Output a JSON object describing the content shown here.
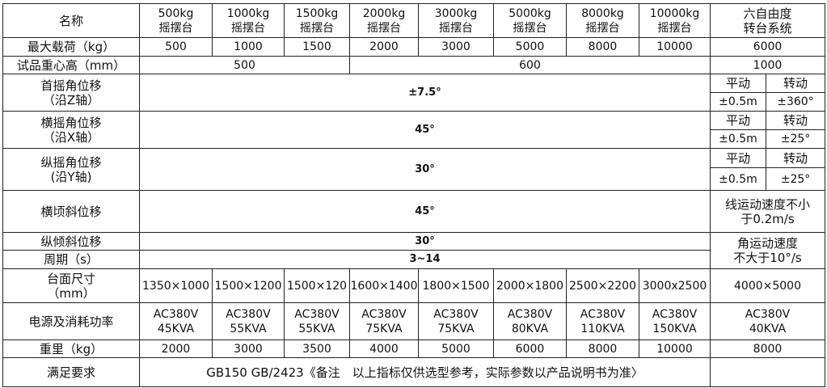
{
  "header": {
    "label": "名称",
    "models": [
      {
        "l1": "500kg",
        "l2": "摇摆台"
      },
      {
        "l1": "1000kg",
        "l2": "摇摆台"
      },
      {
        "l1": "1500kg",
        "l2": "摇摆台"
      },
      {
        "l1": "2000kg",
        "l2": "摇摆台"
      },
      {
        "l1": "3000kg",
        "l2": "摇摆台"
      },
      {
        "l1": "5000kg",
        "l2": "摇摆台"
      },
      {
        "l1": "8000kg",
        "l2": "摇摆台"
      },
      {
        "l1": "10000kg",
        "l2": "摇摆台"
      }
    ],
    "six_dof": {
      "l1": "六自由度",
      "l2": "转台系统"
    }
  },
  "max_load": {
    "label": "最大载荷（kg）",
    "values": [
      "500",
      "1000",
      "1500",
      "2000",
      "3000",
      "5000",
      "8000",
      "10000"
    ],
    "six_dof": "6000"
  },
  "cog_height": {
    "label": "试品重心高（mm）",
    "group1": "500",
    "group2": "600",
    "six_dof": "1000"
  },
  "yaw": {
    "l1": "首摇角位移",
    "l2": "（沿Z轴）",
    "value": "±7.5°",
    "h1": "平动",
    "h2": "转动",
    "v1": "±0.5m",
    "v2": "±360°"
  },
  "roll": {
    "l1": "横摇角位移",
    "l2": "（沿X轴）",
    "value": "45°",
    "h1": "平动",
    "h2": "转动",
    "v1": "±0.5m",
    "v2": "±25°"
  },
  "pitch": {
    "l1": "纵摇角位移",
    "l2": "(沿Y轴)",
    "value": "30°",
    "h1": "平动",
    "h2": "转动",
    "v1": "±0.5m",
    "v2": "±25°"
  },
  "lateral_tilt": {
    "label": "横顷斜位移",
    "value": "45°",
    "six_l1": "线运动速度不小",
    "six_l2": "于0.2m/s"
  },
  "long_tilt": {
    "label": "纵倾斜位移",
    "value": "30°",
    "six_l1": "角运动速度",
    "six_l2": "不大于10°/s"
  },
  "period": {
    "label": "周期（s）",
    "value": "3~14"
  },
  "table_size": {
    "l1": "台面尺寸",
    "l2": "（mm）",
    "values": [
      "1350×1000",
      "1500×1200",
      "1500×120",
      "1600×1400",
      "1800×1500",
      "2000×1800",
      "2500×2200",
      "3000x2500"
    ],
    "six_dof": "4000×5000"
  },
  "power": {
    "label": "电源及消耗功率",
    "voltage": "AC380V",
    "values": [
      "45KVA",
      "55KVA",
      "55KVA",
      "75KVA",
      "75KVA",
      "80KVA",
      "110KVA",
      "150KVA"
    ],
    "six_dof": "40KVA"
  },
  "weight": {
    "label": "重里（kg）",
    "values": [
      "2000",
      "3000",
      "3500",
      "4000",
      "5000",
      "6000",
      "8000",
      "10000"
    ],
    "six_dof": "8000"
  },
  "standard": {
    "label": "满足要求",
    "value": "GB150 GB/2423《备注　以上指标仅供选型参考，实际参数以产品说明书为准〉"
  }
}
